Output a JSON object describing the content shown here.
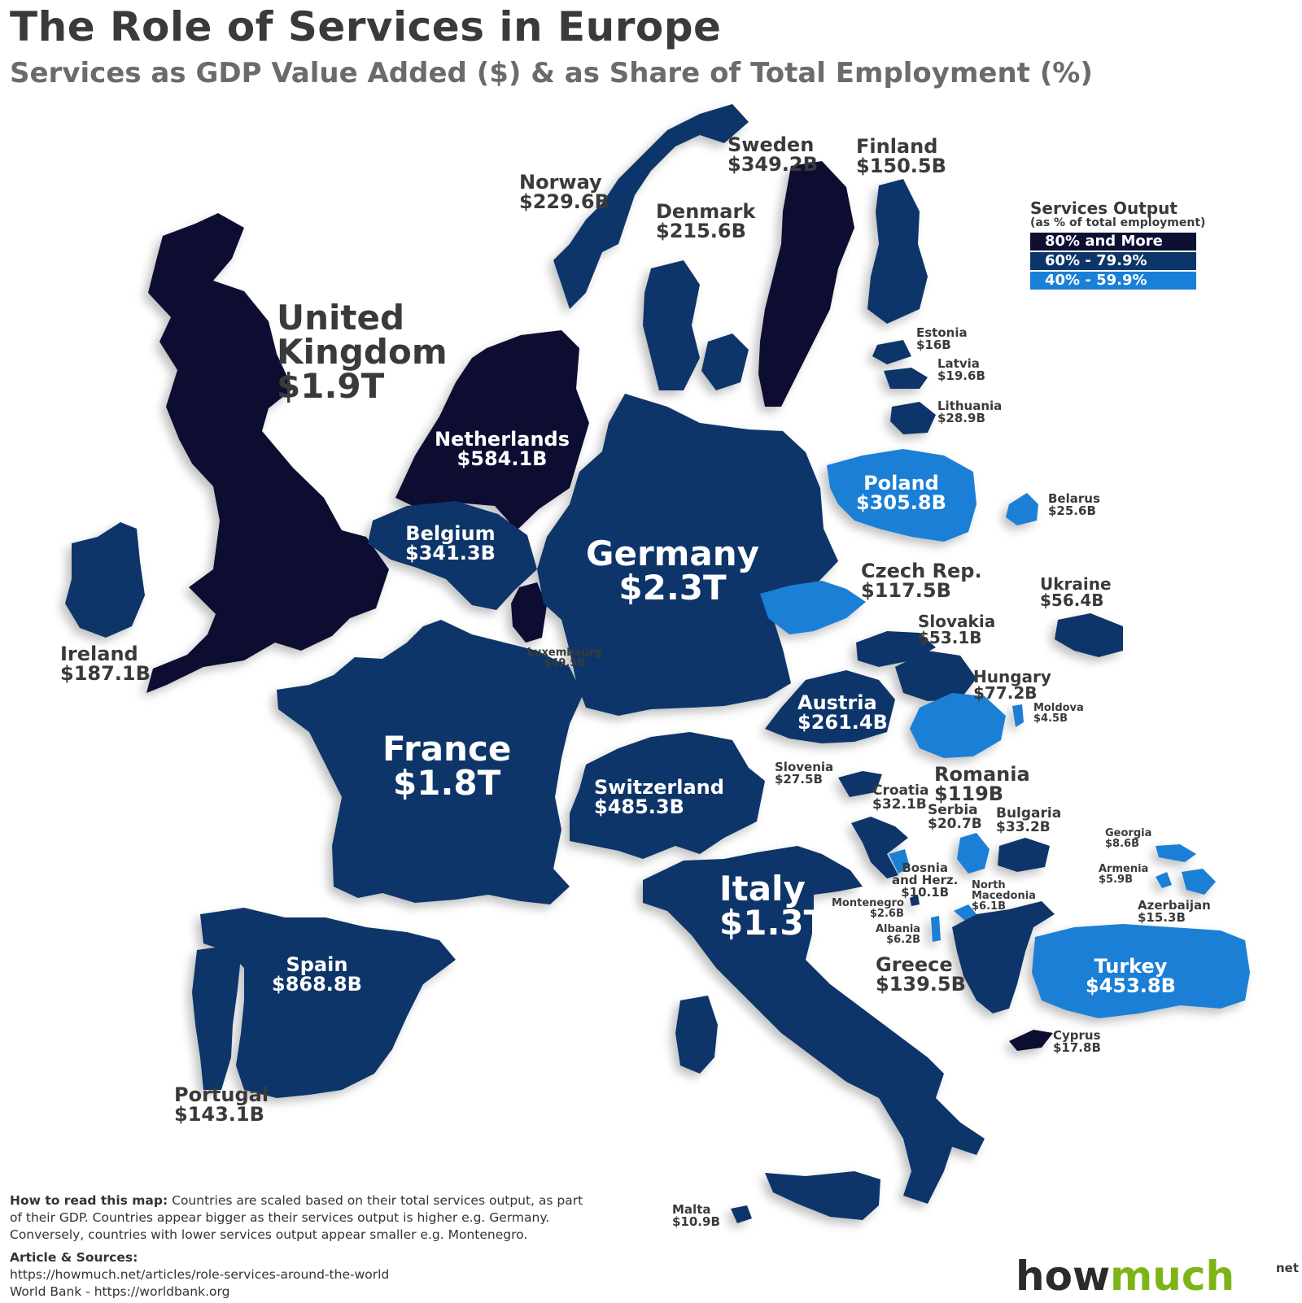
{
  "title": "The Role of Services in Europe",
  "subtitle": "Services as GDP Value Added ($) & as Share of Total Employment (%)",
  "legend": {
    "title": "Services Output",
    "subtitle": "(as % of total employment)",
    "items": [
      {
        "label": "80% and More",
        "color": "#0d0f33"
      },
      {
        "label": "60% - 79.9%",
        "color": "#0c3669"
      },
      {
        "label": "40% - 59.9%",
        "color": "#1a7fd6"
      }
    ]
  },
  "countries": [
    {
      "key": "uk",
      "name": "United Kingdom",
      "name_l1": "United",
      "name_l2": "Kingdom",
      "value": "$1.9T",
      "category": "80% and More"
    },
    {
      "key": "ireland",
      "name": "Ireland",
      "value": "$187.1B",
      "category": "60% - 79.9%"
    },
    {
      "key": "netherlands",
      "name": "Netherlands",
      "value": "$584.1B",
      "category": "80% and More"
    },
    {
      "key": "belgium",
      "name": "Belgium",
      "value": "$341.3B",
      "category": "60% - 79.9%"
    },
    {
      "key": "luxembourg",
      "name": "Luxembourg",
      "value": "$49.5B",
      "category": "80% and More"
    },
    {
      "key": "germany",
      "name": "Germany",
      "value": "$2.3T",
      "category": "60% - 79.9%"
    },
    {
      "key": "france",
      "name": "France",
      "value": "$1.8T",
      "category": "60% - 79.9%"
    },
    {
      "key": "switzerland",
      "name": "Switzerland",
      "value": "$485.3B",
      "category": "60% - 79.9%"
    },
    {
      "key": "italy",
      "name": "Italy",
      "value": "$1.3T",
      "category": "60% - 79.9%"
    },
    {
      "key": "spain",
      "name": "Spain",
      "value": "$868.8B",
      "category": "60% - 79.9%"
    },
    {
      "key": "portugal",
      "name": "Portugal",
      "value": "$143.1B",
      "category": "60% - 79.9%"
    },
    {
      "key": "norway",
      "name": "Norway",
      "value": "$229.6B",
      "category": "60% - 79.9%"
    },
    {
      "key": "sweden",
      "name": "Sweden",
      "value": "$349.2B",
      "category": "80% and More"
    },
    {
      "key": "finland",
      "name": "Finland",
      "value": "$150.5B",
      "category": "60% - 79.9%"
    },
    {
      "key": "denmark",
      "name": "Denmark",
      "value": "$215.6B",
      "category": "60% - 79.9%"
    },
    {
      "key": "estonia",
      "name": "Estonia",
      "value": "$16B",
      "category": "60% - 79.9%"
    },
    {
      "key": "latvia",
      "name": "Latvia",
      "value": "$19.6B",
      "category": "60% - 79.9%"
    },
    {
      "key": "lithuania",
      "name": "Lithuania",
      "value": "$28.9B",
      "category": "60% - 79.9%"
    },
    {
      "key": "poland",
      "name": "Poland",
      "value": "$305.8B",
      "category": "40% - 59.9%"
    },
    {
      "key": "belarus",
      "name": "Belarus",
      "value": "$25.6B",
      "category": "40% - 59.9%"
    },
    {
      "key": "czech",
      "name": "Czech Rep.",
      "value": "$117.5B",
      "category": "40% - 59.9%"
    },
    {
      "key": "ukraine",
      "name": "Ukraine",
      "value": "$56.4B",
      "category": "60% - 79.9%"
    },
    {
      "key": "slovakia",
      "name": "Slovakia",
      "value": "$53.1B",
      "category": "60% - 79.9%"
    },
    {
      "key": "hungary",
      "name": "Hungary",
      "value": "$77.2B",
      "category": "60% - 79.9%"
    },
    {
      "key": "austria",
      "name": "Austria",
      "value": "$261.4B",
      "category": "60% - 79.9%"
    },
    {
      "key": "moldova",
      "name": "Moldova",
      "value": "$4.5B",
      "category": "40% - 59.9%"
    },
    {
      "key": "romania",
      "name": "Romania",
      "value": "$119B",
      "category": "40% - 59.9%"
    },
    {
      "key": "slovenia",
      "name": "Slovenia",
      "value": "$27.5B",
      "category": "60% - 79.9%"
    },
    {
      "key": "croatia",
      "name": "Croatia",
      "value": "$32.1B",
      "category": "60% - 79.9%"
    },
    {
      "key": "serbia",
      "name": "Serbia",
      "value": "$20.7B",
      "category": "40% - 59.9%"
    },
    {
      "key": "bulgaria",
      "name": "Bulgaria",
      "value": "$33.2B",
      "category": "60% - 79.9%"
    },
    {
      "key": "bosnia",
      "name": "Bosnia and Herz.",
      "name_l1": "Bosnia",
      "name_l2": "and Herz.",
      "value": "$10.1B",
      "category": "40% - 59.9%"
    },
    {
      "key": "north_macedonia",
      "name": "North Macedonia",
      "name_l1": "North",
      "name_l2": "Macedonia",
      "value": "$6.1B",
      "category": "40% - 59.9%"
    },
    {
      "key": "montenegro",
      "name": "Montenegro",
      "value": "$2.6B",
      "category": "60% - 79.9%"
    },
    {
      "key": "albania",
      "name": "Albania",
      "value": "$6.2B",
      "category": "40% - 59.9%"
    },
    {
      "key": "georgia",
      "name": "Georgia",
      "value": "$8.6B",
      "category": "40% - 59.9%"
    },
    {
      "key": "armenia",
      "name": "Armenia",
      "value": "$5.9B",
      "category": "40% - 59.9%"
    },
    {
      "key": "azerbaijan",
      "name": "Azerbaijan",
      "value": "$15.3B",
      "category": "40% - 59.9%"
    },
    {
      "key": "greece",
      "name": "Greece",
      "value": "$139.5B",
      "category": "60% - 79.9%"
    },
    {
      "key": "turkey",
      "name": "Turkey",
      "value": "$453.8B",
      "category": "40% - 59.9%"
    },
    {
      "key": "cyprus",
      "name": "Cyprus",
      "value": "$17.8B",
      "category": "80% and More"
    },
    {
      "key": "malta",
      "name": "Malta",
      "value": "$10.9B",
      "category": "60% - 79.9%"
    }
  ],
  "how_to": {
    "heading": "How to read this map:",
    "text": "Countries are scaled based on their total services output, as part of their GDP. Countries appear bigger as their services output is higher e.g. Germany. Conversely, countries with lower services output appear smaller e.g. Montenegro."
  },
  "sources": {
    "heading": "Article & Sources:",
    "line1": "https://howmuch.net/articles/role-services-around-the-world",
    "line2": "World Bank - https://worldbank.org"
  },
  "logo": {
    "how": "how",
    "much": "much",
    "net": "net",
    "how_color": "#2b2b2b",
    "much_color": "#7cb518"
  }
}
